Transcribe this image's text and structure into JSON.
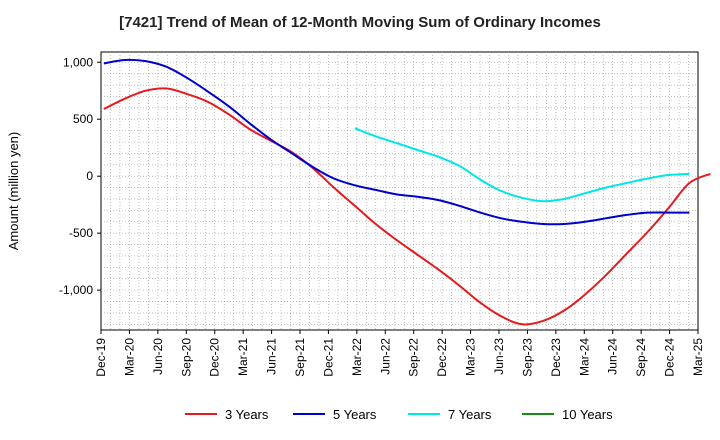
{
  "chart_data": {
    "type": "line",
    "title": "[7421]  Trend of Mean of 12-Month Moving Sum of Ordinary Incomes",
    "xlabel": "",
    "ylabel": "Amount (million yen)",
    "ylim": [
      -1350,
      1090
    ],
    "yticks": [
      1000,
      500,
      0,
      -500,
      -1000
    ],
    "ytick_labels": [
      "1,000",
      "500",
      "0",
      "-500",
      "-1,000"
    ],
    "xtick_labels": [
      "Dec-19",
      "Mar-20",
      "Jun-20",
      "Sep-20",
      "Dec-20",
      "Mar-21",
      "Jun-21",
      "Sep-21",
      "Dec-21",
      "Mar-22",
      "Jun-22",
      "Sep-22",
      "Dec-22",
      "Mar-23",
      "Jun-23",
      "Sep-23",
      "Dec-23",
      "Mar-24",
      "Jun-24",
      "Sep-24",
      "Dec-24",
      "Mar-25"
    ],
    "grid": true,
    "legend_position": "bottom",
    "series": [
      {
        "name": "3 Years",
        "color": "#e41a1c",
        "points": [
          [
            0,
            590
          ],
          [
            1,
            680
          ],
          [
            2,
            750
          ],
          [
            3,
            770
          ],
          [
            4,
            720
          ],
          [
            5,
            650
          ],
          [
            6,
            540
          ],
          [
            7,
            410
          ],
          [
            8,
            310
          ],
          [
            9,
            210
          ],
          [
            10,
            70
          ],
          [
            11,
            -100
          ],
          [
            12,
            -260
          ],
          [
            13,
            -420
          ],
          [
            14,
            -560
          ],
          [
            15,
            -690
          ],
          [
            16,
            -820
          ],
          [
            17,
            -960
          ],
          [
            18,
            -1110
          ],
          [
            19,
            -1230
          ],
          [
            20,
            -1300
          ],
          [
            21,
            -1270
          ],
          [
            22,
            -1180
          ],
          [
            23,
            -1040
          ],
          [
            24,
            -870
          ],
          [
            25,
            -680
          ],
          [
            26,
            -490
          ],
          [
            27,
            -280
          ],
          [
            28,
            -60
          ],
          [
            29,
            20
          ]
        ]
      },
      {
        "name": "5 Years",
        "color": "#0000cc",
        "points": [
          [
            0,
            990
          ],
          [
            1,
            1020
          ],
          [
            2,
            1010
          ],
          [
            3,
            960
          ],
          [
            4,
            860
          ],
          [
            5,
            740
          ],
          [
            6,
            610
          ],
          [
            7,
            460
          ],
          [
            8,
            320
          ],
          [
            9,
            200
          ],
          [
            10,
            80
          ],
          [
            11,
            -20
          ],
          [
            12,
            -80
          ],
          [
            13,
            -120
          ],
          [
            14,
            -160
          ],
          [
            15,
            -180
          ],
          [
            16,
            -210
          ],
          [
            17,
            -260
          ],
          [
            18,
            -320
          ],
          [
            19,
            -370
          ],
          [
            20,
            -400
          ],
          [
            21,
            -420
          ],
          [
            22,
            -420
          ],
          [
            23,
            -400
          ],
          [
            24,
            -370
          ],
          [
            25,
            -340
          ],
          [
            26,
            -320
          ],
          [
            27,
            -320
          ],
          [
            28,
            -320
          ]
        ]
      },
      {
        "name": "7 Years",
        "color": "#00e5e5",
        "points": [
          [
            12,
            420
          ],
          [
            13,
            350
          ],
          [
            14,
            290
          ],
          [
            15,
            230
          ],
          [
            16,
            170
          ],
          [
            17,
            90
          ],
          [
            18,
            -30
          ],
          [
            19,
            -130
          ],
          [
            20,
            -190
          ],
          [
            21,
            -220
          ],
          [
            22,
            -200
          ],
          [
            23,
            -150
          ],
          [
            24,
            -100
          ],
          [
            25,
            -60
          ],
          [
            26,
            -20
          ],
          [
            27,
            10
          ],
          [
            28,
            20
          ]
        ]
      },
      {
        "name": "10 Years",
        "color": "#1a8a1a",
        "points": []
      }
    ]
  }
}
